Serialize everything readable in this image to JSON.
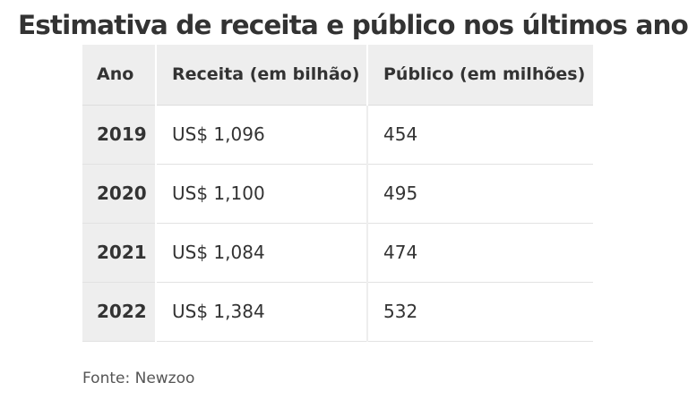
{
  "title": "Estimativa de receita e público nos últimos anos",
  "table": {
    "headers": [
      "Ano",
      "Receita (em bilhão)",
      "Público (em milhões)"
    ],
    "rows": [
      [
        "2019",
        "US$ 1,096",
        "454"
      ],
      [
        "2020",
        "US$ 1,100",
        "495"
      ],
      [
        "2021",
        "US$ 1,084",
        "474"
      ],
      [
        "2022",
        "US$ 1,384",
        "532"
      ]
    ]
  },
  "source": "Fonte: Newzoo",
  "colors": {
    "text": "#333333",
    "header_background": "#eeeeee",
    "year_cell_background": "#eeeeee",
    "row_divider": "#e2e2e2"
  }
}
